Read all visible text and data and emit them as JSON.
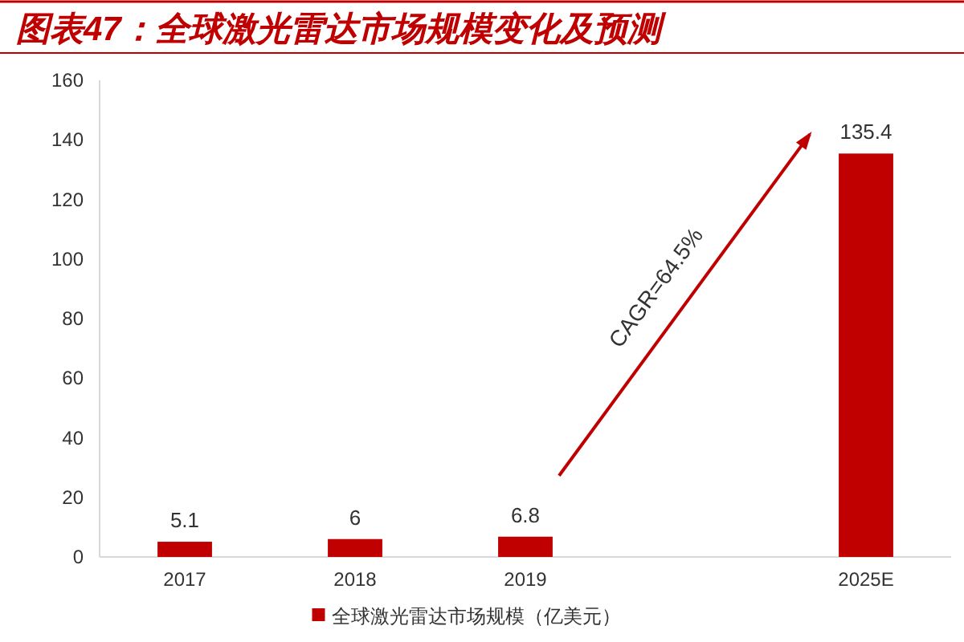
{
  "chart_data": {
    "type": "bar",
    "title": "图表47：全球激光雷达市场规模变化及预测",
    "categories": [
      "2017",
      "2018",
      "2019",
      null,
      "2025E"
    ],
    "series": [
      {
        "name": "全球激光雷达市场规模（亿美元）",
        "color": "#c00000",
        "values": [
          5.1,
          6,
          6.8,
          null,
          135.4
        ]
      }
    ],
    "data_labels": true,
    "ylim": [
      0,
      160
    ],
    "yticks": [
      0,
      20,
      40,
      60,
      80,
      100,
      120,
      140,
      160
    ],
    "annotations": [
      "CAGR=64.5%"
    ],
    "grid": false,
    "legend": "bottom"
  }
}
